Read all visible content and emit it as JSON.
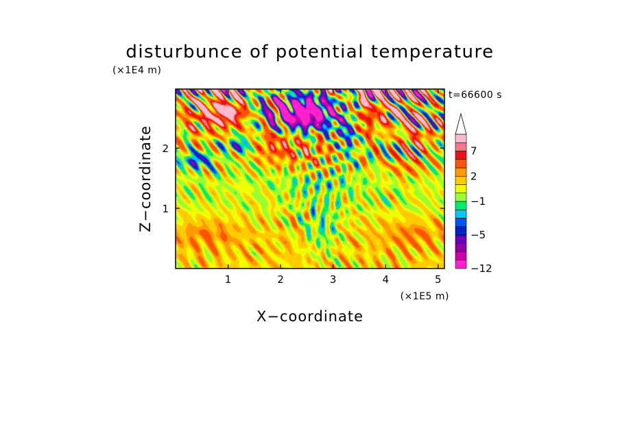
{
  "chart_data": {
    "type": "heatmap",
    "title": "disturbunce of potential temperature",
    "xlabel": "X−coordinate",
    "ylabel": "Z−coordinate",
    "x_scale_label": "(×1E5 m)",
    "y_scale_label": "(×1E4 m)",
    "time_label": "t=66600 s",
    "xlim": [
      0,
      5.12
    ],
    "ylim": [
      0,
      2.98
    ],
    "x_ticks": [
      {
        "value": 1,
        "label": "1"
      },
      {
        "value": 2,
        "label": "2"
      },
      {
        "value": 3,
        "label": "3"
      },
      {
        "value": 4,
        "label": "4"
      },
      {
        "value": 5,
        "label": "5"
      }
    ],
    "y_ticks": [
      {
        "value": 1,
        "label": "1"
      },
      {
        "value": 2,
        "label": "2"
      }
    ],
    "colorbar": {
      "levels": [
        -12,
        -10,
        -8,
        -6,
        -5,
        -4,
        -3,
        -2,
        -1,
        0,
        1,
        2,
        3,
        5,
        7,
        8,
        9
      ],
      "labeled": [
        {
          "value": -12,
          "label": "−12"
        },
        {
          "value": -5,
          "label": "−5"
        },
        {
          "value": -1,
          "label": "−1"
        },
        {
          "value": 2,
          "label": "2"
        },
        {
          "value": 7,
          "label": "7"
        }
      ],
      "colors": [
        "#ff22cc",
        "#cc00aa",
        "#8800aa",
        "#6600bb",
        "#0022cc",
        "#0055ff",
        "#00c8f0",
        "#00ee66",
        "#99ff33",
        "#f0ff00",
        "#ffcc00",
        "#ff9900",
        "#ff5500",
        "#ee1111",
        "#ff7788",
        "#ffbbcc"
      ],
      "extend": "max"
    },
    "features": [
      {
        "x": 2.5,
        "z": 2.6,
        "value": -11,
        "sx": 0.4,
        "sz": 0.2
      },
      {
        "x": 2.3,
        "z": 2.55,
        "value": -6,
        "sx": 0.8,
        "sz": 0.35
      },
      {
        "x": 1.0,
        "z": 2.6,
        "value": 8,
        "sx": 0.4,
        "sz": 0.2
      },
      {
        "x": 0.6,
        "z": 2.55,
        "value": 4,
        "sx": 0.55,
        "sz": 0.35
      },
      {
        "x": 1.9,
        "z": 2.1,
        "value": 5,
        "sx": 0.45,
        "sz": 0.3
      },
      {
        "x": 2.6,
        "z": 2.0,
        "value": 3,
        "sx": 0.5,
        "sz": 0.3
      },
      {
        "x": 3.5,
        "z": 2.5,
        "value": 5,
        "sx": 0.3,
        "sz": 0.4
      },
      {
        "x": 4.0,
        "z": 2.6,
        "value": 4,
        "sx": 0.35,
        "sz": 0.25
      },
      {
        "x": 3.3,
        "z": 2.3,
        "value": -5,
        "sx": 0.2,
        "sz": 0.4
      },
      {
        "x": 4.6,
        "z": 2.2,
        "value": 4,
        "sx": 0.3,
        "sz": 0.25
      },
      {
        "x": 0.4,
        "z": 1.8,
        "value": -5,
        "sx": 0.25,
        "sz": 0.12
      },
      {
        "x": 1.2,
        "z": 2.05,
        "value": -4,
        "sx": 0.3,
        "sz": 0.12
      },
      {
        "x": 4.4,
        "z": 1.7,
        "value": 3,
        "sx": 0.35,
        "sz": 0.18
      },
      {
        "x": 2.7,
        "z": 1.4,
        "value": -1,
        "sx": 0.8,
        "sz": 0.12
      },
      {
        "x": 0.6,
        "z": 0.55,
        "value": 3,
        "sx": 0.55,
        "sz": 0.2
      },
      {
        "x": 4.5,
        "z": 0.55,
        "value": 3,
        "sx": 0.5,
        "sz": 0.2
      },
      {
        "x": 2.8,
        "z": 0.7,
        "value": -1,
        "sx": 0.35,
        "sz": 0.45
      }
    ],
    "background_profile": [
      {
        "z": 0.0,
        "value": 1.2
      },
      {
        "z": 0.35,
        "value": 1.5
      },
      {
        "z": 0.8,
        "value": 1.1
      },
      {
        "z": 1.05,
        "value": 0.3
      },
      {
        "z": 1.2,
        "value": 0.4
      },
      {
        "z": 1.45,
        "value": 0.2
      },
      {
        "z": 1.7,
        "value": 0.4
      },
      {
        "z": 2.2,
        "value": 0.6
      },
      {
        "z": 2.98,
        "value": 0.8
      }
    ]
  }
}
